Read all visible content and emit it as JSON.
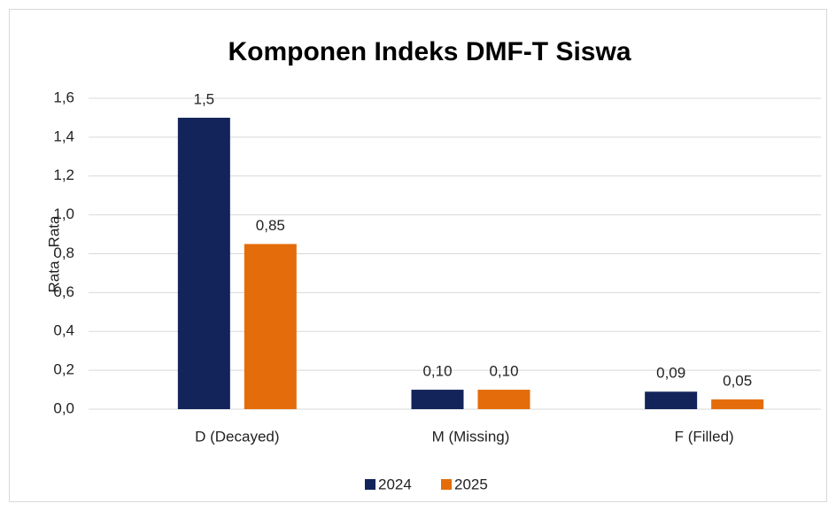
{
  "chart_data": {
    "type": "bar",
    "title": "Komponen Indeks DMF-T Siswa",
    "y_label": "Rata - Rata",
    "categories": [
      "D (Decayed)",
      "M (Missing)",
      "F (Filled)"
    ],
    "series": [
      {
        "name": "2024",
        "color": "#12245a",
        "values": [
          1.5,
          0.1,
          0.09
        ],
        "value_labels": [
          "1,5",
          "0,10",
          "0,09"
        ]
      },
      {
        "name": "2025",
        "color": "#e46c0a",
        "values": [
          0.85,
          0.1,
          0.05
        ],
        "value_labels": [
          "0,85",
          "0,10",
          "0,05"
        ]
      }
    ],
    "ylim": [
      0,
      1.6
    ],
    "yticks": [
      {
        "value": 0,
        "label": "0,0"
      },
      {
        "value": 0.2,
        "label": "0,2"
      },
      {
        "value": 0.4,
        "label": "0,4"
      },
      {
        "value": 0.6,
        "label": "0,6"
      },
      {
        "value": 0.8,
        "label": "0,8"
      },
      {
        "value": 1.0,
        "label": "1,0"
      },
      {
        "value": 1.2,
        "label": "1,2"
      },
      {
        "value": 1.4,
        "label": "1,4"
      },
      {
        "value": 1.6,
        "label": "1,6"
      }
    ],
    "grid": true,
    "legend": "bottom"
  }
}
